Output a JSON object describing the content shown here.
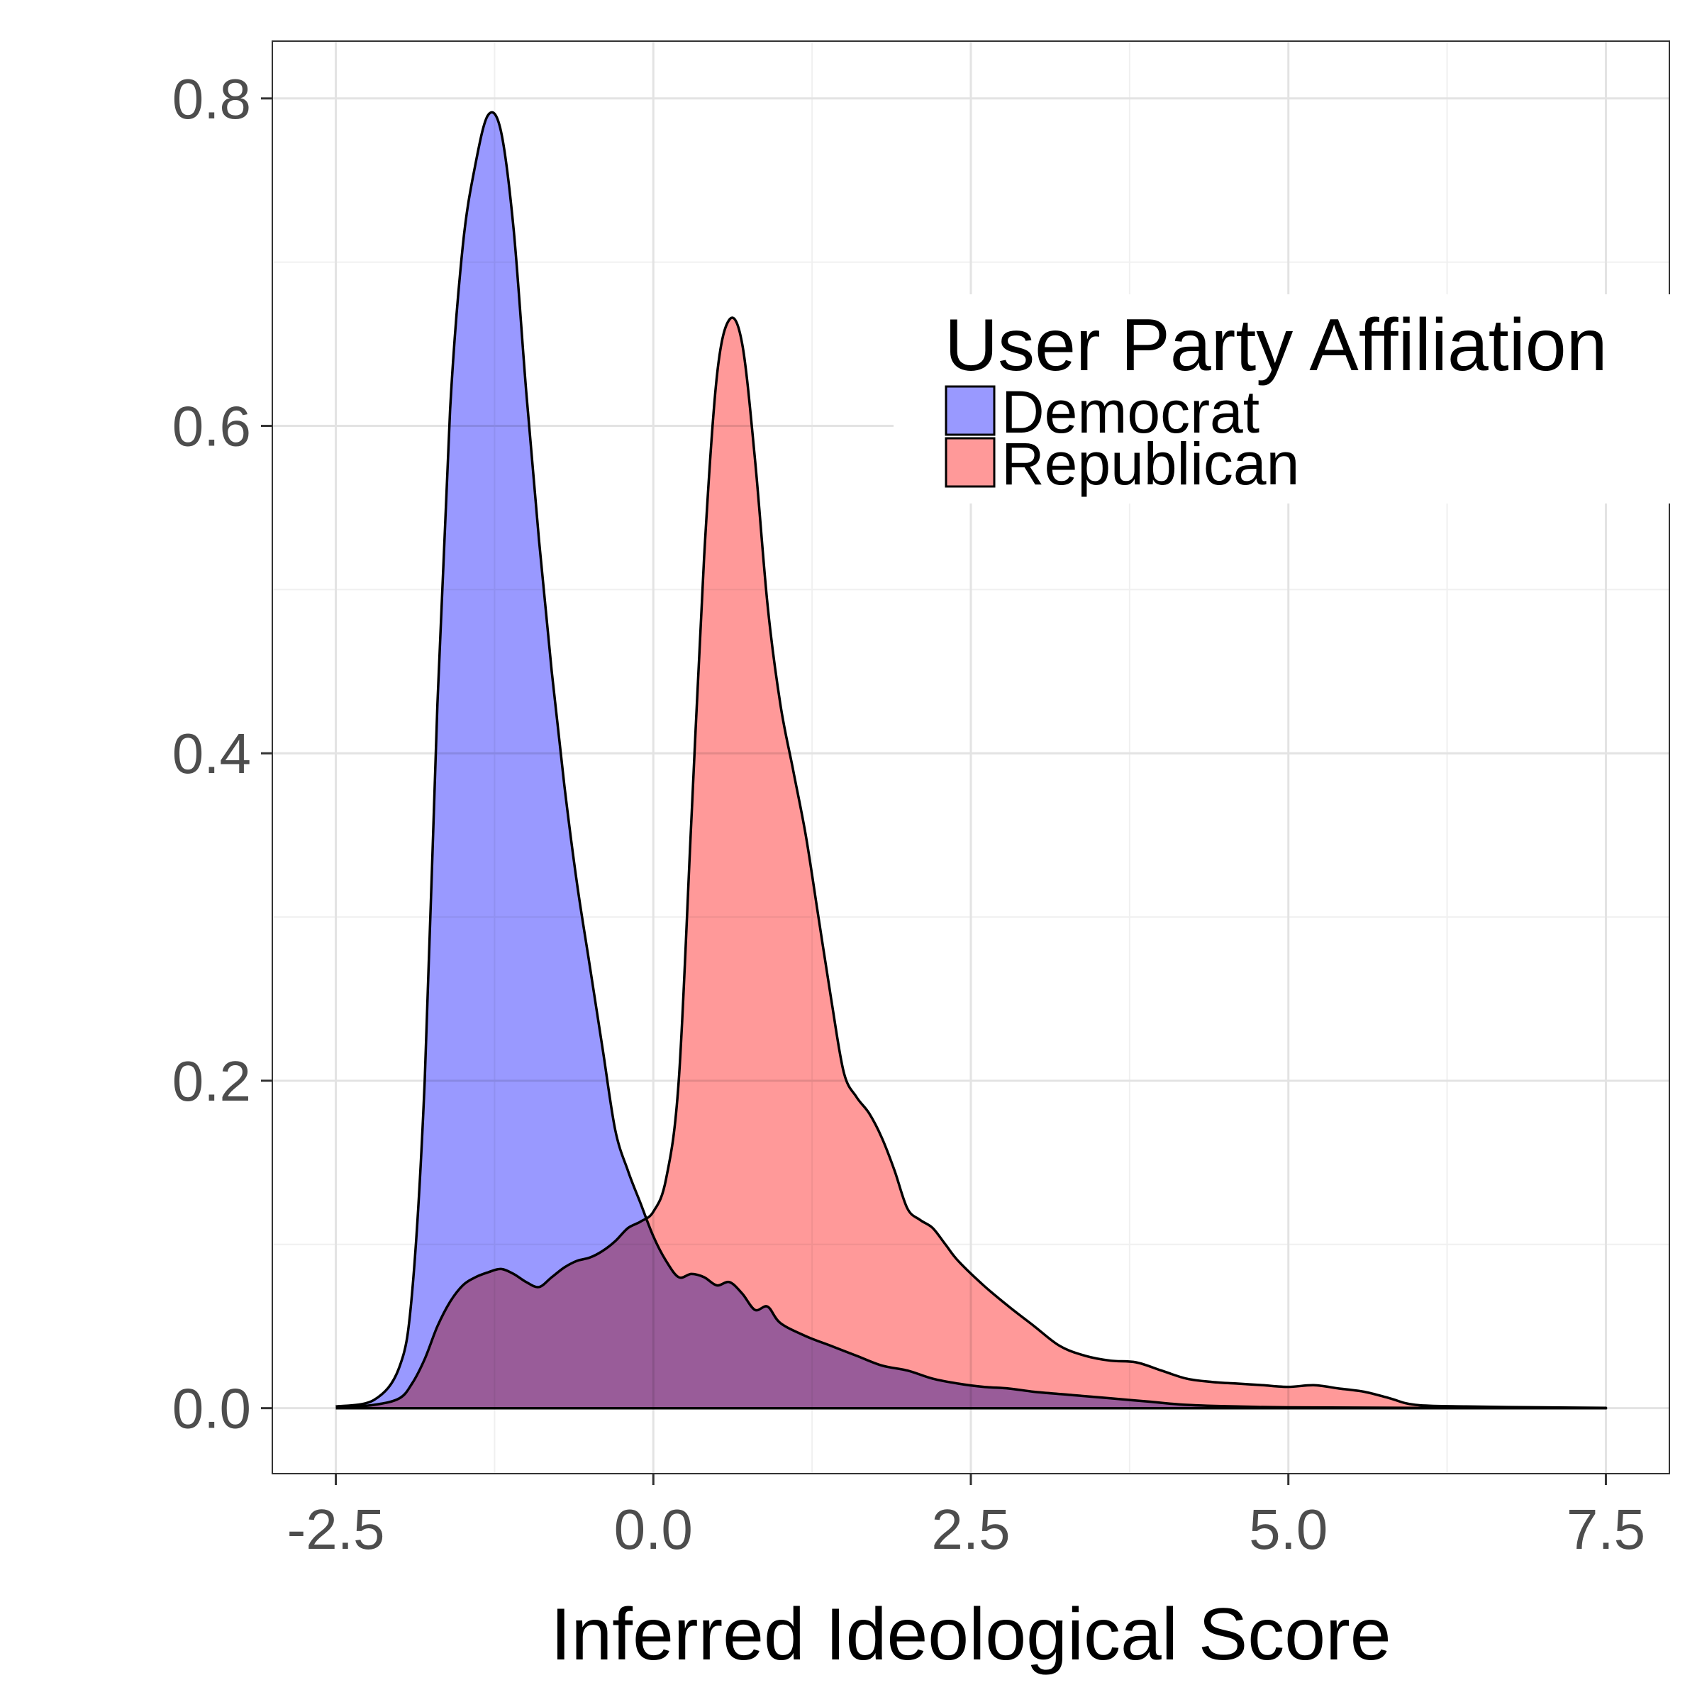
{
  "chart_data": {
    "type": "area",
    "xlabel": "Inferred Ideological Score",
    "ylabel": "",
    "xlim": [
      -3.0,
      8.0
    ],
    "ylim": [
      -0.04,
      0.835
    ],
    "x_ticks": [
      -2.5,
      0.0,
      2.5,
      5.0,
      7.5
    ],
    "x_tick_labels": [
      "-2.5",
      "0.0",
      "2.5",
      "5.0",
      "7.5"
    ],
    "y_ticks": [
      0.0,
      0.2,
      0.4,
      0.6,
      0.8
    ],
    "y_tick_labels": [
      "0.0",
      "0.2",
      "0.4",
      "0.6",
      "0.8"
    ],
    "grid": true,
    "legend": {
      "title": "User Party Affiliation",
      "placement": "top-right"
    },
    "series": [
      {
        "name": "Democrat",
        "color": "#9999ff",
        "points": [
          [
            -2.5,
            0.001
          ],
          [
            -2.2,
            0.005
          ],
          [
            -2.0,
            0.025
          ],
          [
            -1.9,
            0.07
          ],
          [
            -1.8,
            0.2
          ],
          [
            -1.7,
            0.43
          ],
          [
            -1.6,
            0.61
          ],
          [
            -1.5,
            0.71
          ],
          [
            -1.4,
            0.76
          ],
          [
            -1.3,
            0.79
          ],
          [
            -1.2,
            0.78
          ],
          [
            -1.1,
            0.72
          ],
          [
            -1.0,
            0.62
          ],
          [
            -0.9,
            0.53
          ],
          [
            -0.8,
            0.45
          ],
          [
            -0.7,
            0.38
          ],
          [
            -0.6,
            0.32
          ],
          [
            -0.5,
            0.27
          ],
          [
            -0.4,
            0.22
          ],
          [
            -0.3,
            0.17
          ],
          [
            -0.2,
            0.145
          ],
          [
            -0.1,
            0.125
          ],
          [
            0.0,
            0.105
          ],
          [
            0.1,
            0.09
          ],
          [
            0.2,
            0.08
          ],
          [
            0.3,
            0.082
          ],
          [
            0.4,
            0.08
          ],
          [
            0.5,
            0.075
          ],
          [
            0.6,
            0.077
          ],
          [
            0.7,
            0.07
          ],
          [
            0.8,
            0.06
          ],
          [
            0.9,
            0.062
          ],
          [
            1.0,
            0.052
          ],
          [
            1.2,
            0.044
          ],
          [
            1.4,
            0.038
          ],
          [
            1.6,
            0.032
          ],
          [
            1.8,
            0.026
          ],
          [
            2.0,
            0.023
          ],
          [
            2.2,
            0.018
          ],
          [
            2.4,
            0.015
          ],
          [
            2.6,
            0.013
          ],
          [
            2.8,
            0.012
          ],
          [
            3.0,
            0.01
          ],
          [
            3.3,
            0.008
          ],
          [
            3.6,
            0.006
          ],
          [
            3.9,
            0.004
          ],
          [
            4.2,
            0.002
          ],
          [
            4.6,
            0.001
          ],
          [
            5.0,
            0.0005
          ],
          [
            6.0,
            0.0002
          ],
          [
            7.5,
            0.0001
          ]
        ]
      },
      {
        "name": "Republican",
        "color": "#ff9999",
        "points": [
          [
            -2.5,
            0.0
          ],
          [
            -2.2,
            0.002
          ],
          [
            -2.0,
            0.006
          ],
          [
            -1.9,
            0.015
          ],
          [
            -1.8,
            0.03
          ],
          [
            -1.7,
            0.05
          ],
          [
            -1.6,
            0.065
          ],
          [
            -1.5,
            0.075
          ],
          [
            -1.4,
            0.08
          ],
          [
            -1.3,
            0.083
          ],
          [
            -1.2,
            0.085
          ],
          [
            -1.1,
            0.082
          ],
          [
            -1.0,
            0.077
          ],
          [
            -0.9,
            0.074
          ],
          [
            -0.8,
            0.08
          ],
          [
            -0.7,
            0.086
          ],
          [
            -0.6,
            0.09
          ],
          [
            -0.5,
            0.092
          ],
          [
            -0.4,
            0.096
          ],
          [
            -0.3,
            0.102
          ],
          [
            -0.2,
            0.11
          ],
          [
            -0.1,
            0.114
          ],
          [
            0.0,
            0.12
          ],
          [
            0.1,
            0.14
          ],
          [
            0.2,
            0.2
          ],
          [
            0.3,
            0.36
          ],
          [
            0.4,
            0.52
          ],
          [
            0.5,
            0.63
          ],
          [
            0.6,
            0.665
          ],
          [
            0.7,
            0.65
          ],
          [
            0.8,
            0.58
          ],
          [
            0.9,
            0.49
          ],
          [
            1.0,
            0.43
          ],
          [
            1.1,
            0.39
          ],
          [
            1.2,
            0.35
          ],
          [
            1.3,
            0.3
          ],
          [
            1.4,
            0.25
          ],
          [
            1.5,
            0.205
          ],
          [
            1.6,
            0.19
          ],
          [
            1.7,
            0.18
          ],
          [
            1.8,
            0.165
          ],
          [
            1.9,
            0.145
          ],
          [
            2.0,
            0.122
          ],
          [
            2.1,
            0.115
          ],
          [
            2.2,
            0.11
          ],
          [
            2.3,
            0.1
          ],
          [
            2.4,
            0.09
          ],
          [
            2.6,
            0.075
          ],
          [
            2.8,
            0.062
          ],
          [
            3.0,
            0.05
          ],
          [
            3.2,
            0.038
          ],
          [
            3.4,
            0.032
          ],
          [
            3.6,
            0.029
          ],
          [
            3.8,
            0.028
          ],
          [
            4.0,
            0.023
          ],
          [
            4.2,
            0.018
          ],
          [
            4.4,
            0.016
          ],
          [
            4.6,
            0.015
          ],
          [
            4.8,
            0.014
          ],
          [
            5.0,
            0.013
          ],
          [
            5.2,
            0.014
          ],
          [
            5.4,
            0.012
          ],
          [
            5.6,
            0.01
          ],
          [
            5.8,
            0.006
          ],
          [
            6.0,
            0.002
          ],
          [
            6.4,
            0.001
          ],
          [
            7.0,
            0.0005
          ],
          [
            7.5,
            0.0002
          ]
        ]
      }
    ]
  }
}
